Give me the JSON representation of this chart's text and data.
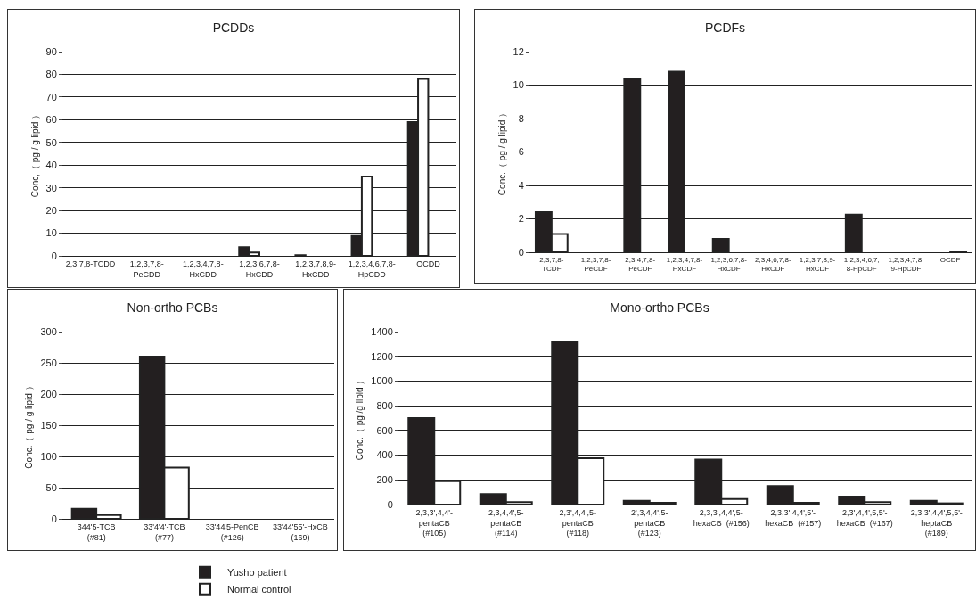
{
  "chart_data": [
    {
      "type": "bar",
      "title": "PCDDs",
      "ylabel": "Conc,（ pg / g lipid ）",
      "categories": [
        "2,3,7,8-TCDD",
        "1,2,3,7,8-\nPeCDD",
        "1,2,3,4,7,8-\nHxCDD",
        "1,2,3,6,7,8-\nHxCDD",
        "1,2,3,7,8,9-\nHxCDD",
        "1,2,3,4,6,7,8-\nHpCDD",
        "OCDD"
      ],
      "series": [
        {
          "name": "Yusho patient",
          "color": "#231f20",
          "values": [
            0,
            0,
            0,
            3.8,
            0.3,
            8.7,
            59
          ]
        },
        {
          "name": "Normal control",
          "color": "#ffffff",
          "values": [
            0,
            0,
            0,
            1.5,
            0,
            35,
            78
          ]
        }
      ],
      "ylim": [
        0,
        90
      ],
      "yticks": [
        0,
        10,
        20,
        30,
        40,
        50,
        60,
        70,
        80,
        90
      ],
      "grid": "y",
      "legend": "bottom"
    },
    {
      "type": "bar",
      "title": "PCDFs",
      "ylabel": "Conc.（ pg / g lipid ）",
      "categories": [
        "2,3,7,8-\nTCDF",
        "1,2,3,7,8-\nPeCDF",
        "2,3,4,7,8-\nPeCDF",
        "1,2,3,4,7,8-\nHxCDF",
        "1,2,3,6,7,8-\nHxCDF",
        "2,3,4,6,7,8-\nHxCDF",
        "1,2,3,7,8,9-\nHxCDF",
        "1,2,3,4,6,7,\n8-HpCDF",
        "1,2,3,4,7,8,\n9-HpCDF",
        "OCDF"
      ],
      "series": [
        {
          "color": "#231f20",
          "values": [
            2.4,
            0,
            10.4,
            10.8,
            0.8,
            0,
            0,
            2.25,
            0,
            0
          ]
        },
        {
          "color": "#ffffff",
          "values": [
            1.1,
            0,
            0,
            0,
            0,
            0,
            0,
            0,
            0,
            0.05
          ]
        }
      ],
      "ylim": [
        0,
        12
      ],
      "yticks": [
        0,
        2,
        4,
        6,
        8,
        10,
        12
      ],
      "grid": "y"
    },
    {
      "type": "bar",
      "title": "Non-ortho PCBs",
      "ylabel": "Conc.（ pg / g lipid ）",
      "categories": [
        "344'5-TCB\n(#81)",
        "33'4'4'-TCB\n(#77)",
        "33'44'5-PenCB\n(#126)",
        "33'44'55'-HxCB\n(169)"
      ],
      "series": [
        {
          "color": "#231f20",
          "values": [
            16,
            260,
            0,
            0
          ]
        },
        {
          "color": "#ffffff",
          "values": [
            6,
            82,
            0,
            0
          ]
        }
      ],
      "ylim": [
        0,
        300
      ],
      "yticks": [
        0,
        50,
        100,
        150,
        200,
        250,
        300
      ],
      "grid": "y"
    },
    {
      "type": "bar",
      "title": "Mono-ortho PCBs",
      "ylabel": "Conc.（ pg /g lipid ）",
      "categories": [
        "2,3,3',4,4'-\npentaCB\n(#105)",
        "2,3,4,4',5-\npentaCB\n(#114)",
        "2,3',4,4',5-\npentaCB\n(#118)",
        "2',3,4,4',5-\npentaCB\n(#123)",
        "2,3,3',4,4',5-\nhexaCB  (#156)",
        "2,3,3',4,4',5'-\nhexaCB  (#157)",
        "2,3',4,4',5,5'-\nhexaCB  (#167)",
        "2,3,3',4,4',5,5'-\nheptaCB\n(#189)"
      ],
      "series": [
        {
          "color": "#231f20",
          "values": [
            700,
            85,
            1320,
            30,
            365,
            150,
            65,
            30
          ]
        },
        {
          "color": "#ffffff",
          "values": [
            190,
            20,
            375,
            15,
            45,
            15,
            20,
            10
          ]
        }
      ],
      "ylim": [
        0,
        1400
      ],
      "yticks": [
        0,
        200,
        400,
        600,
        800,
        1000,
        1200,
        1400
      ],
      "grid": "y"
    }
  ]
}
